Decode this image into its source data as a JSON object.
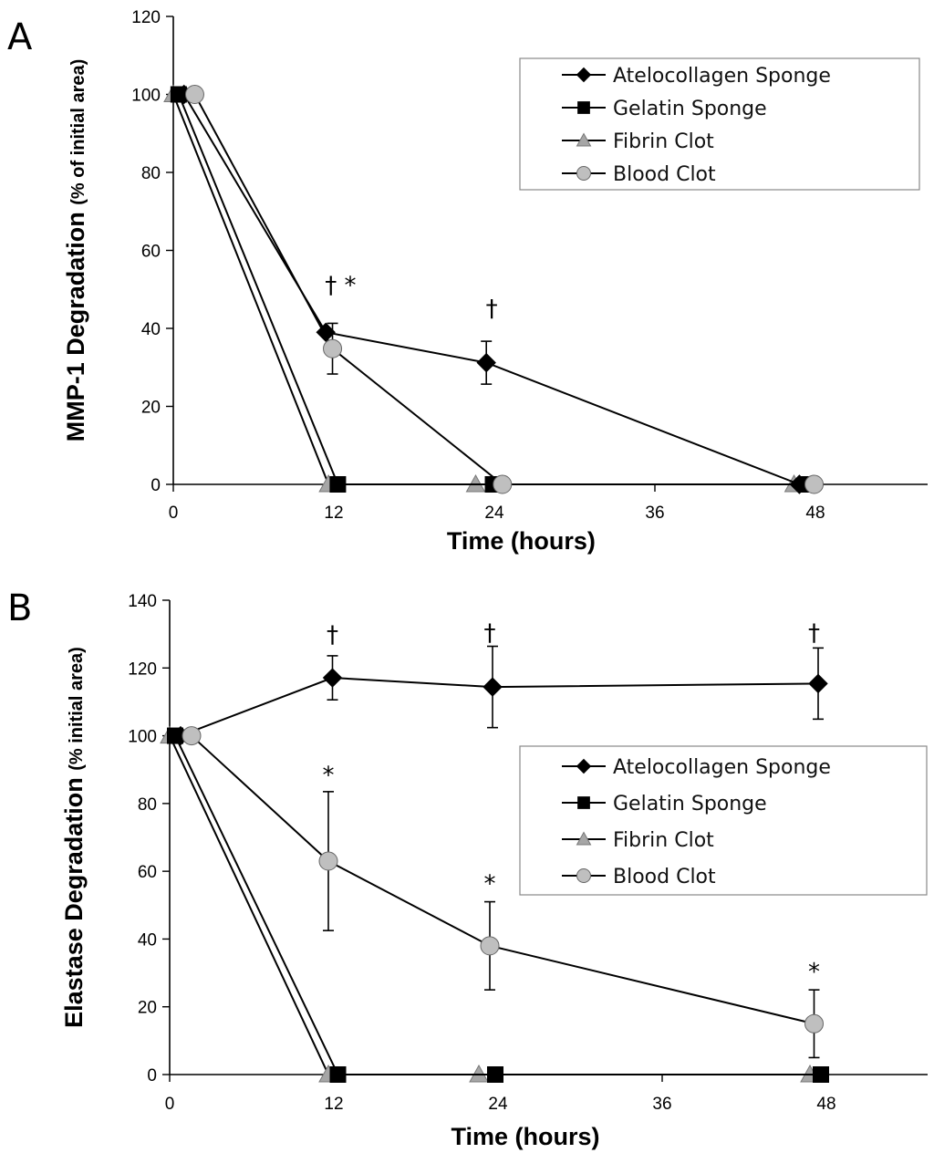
{
  "chart_data": [
    {
      "type": "line",
      "panel": "A",
      "xlabel": "Time (hours)",
      "ylabel_main": "MMP-1 Degradation",
      "ylabel_sub": "(% of initial area)",
      "xticks": [
        0,
        12,
        24,
        36,
        48
      ],
      "yticks": [
        0,
        20,
        40,
        60,
        80,
        100,
        120
      ],
      "xlim": [
        0,
        56
      ],
      "ylim": [
        0,
        120
      ],
      "legend_position": "top-right",
      "series": [
        {
          "name": "Atelocollagen Sponge",
          "marker": "diamond",
          "color": "#000000",
          "points": [
            {
              "x": 0.8,
              "y": 100
            },
            {
              "x": 11.4,
              "y": 39
            },
            {
              "x": 23.4,
              "y": 31.2,
              "err": 5.5
            },
            {
              "x": 46.8,
              "y": 0
            }
          ]
        },
        {
          "name": "Gelatin Sponge",
          "marker": "square",
          "color": "#000000",
          "points": [
            {
              "x": 0.4,
              "y": 100
            },
            {
              "x": 12.3,
              "y": 0
            },
            {
              "x": 23.9,
              "y": 0
            },
            {
              "x": 47.4,
              "y": 0
            }
          ]
        },
        {
          "name": "Fibrin Clot",
          "marker": "triangle",
          "color": "#a6a6a6",
          "points": [
            {
              "x": 0,
              "y": 100
            },
            {
              "x": 11.6,
              "y": 0
            },
            {
              "x": 22.6,
              "y": 0
            },
            {
              "x": 46.4,
              "y": 0
            }
          ]
        },
        {
          "name": "Blood Clot",
          "marker": "circle",
          "color": "#bfbfbf",
          "points": [
            {
              "x": 1.6,
              "y": 100
            },
            {
              "x": 11.9,
              "y": 34.8,
              "err": 6.5
            },
            {
              "x": 24.6,
              "y": 0
            },
            {
              "x": 47.9,
              "y": 0
            }
          ]
        }
      ],
      "annotations": [
        {
          "text": "† *",
          "x": 12.5,
          "y": 49
        },
        {
          "text": "†",
          "x": 23.8,
          "y": 43
        }
      ]
    },
    {
      "type": "line",
      "panel": "B",
      "xlabel": "Time (hours)",
      "ylabel_main": "Elastase Degradation",
      "ylabel_sub": "(% initial area)",
      "xticks": [
        0,
        12,
        24,
        36,
        48
      ],
      "yticks": [
        0,
        20,
        40,
        60,
        80,
        100,
        120,
        140
      ],
      "xlim": [
        0,
        56
      ],
      "ylim": [
        0,
        140
      ],
      "legend_position": "center-right",
      "series": [
        {
          "name": "Atelocollagen Sponge",
          "marker": "diamond",
          "color": "#000000",
          "points": [
            {
              "x": 0.8,
              "y": 100
            },
            {
              "x": 11.9,
              "y": 117.1,
              "err": 6.5
            },
            {
              "x": 23.6,
              "y": 114.4,
              "err": 12
            },
            {
              "x": 47.4,
              "y": 115.4,
              "err": 10.5
            }
          ]
        },
        {
          "name": "Gelatin Sponge",
          "marker": "square",
          "color": "#000000",
          "points": [
            {
              "x": 0.4,
              "y": 100
            },
            {
              "x": 12.3,
              "y": 0
            },
            {
              "x": 23.8,
              "y": 0
            },
            {
              "x": 47.6,
              "y": 0
            }
          ]
        },
        {
          "name": "Fibrin Clot",
          "marker": "triangle",
          "color": "#a6a6a6",
          "points": [
            {
              "x": 0,
              "y": 100
            },
            {
              "x": 11.6,
              "y": 0
            },
            {
              "x": 22.6,
              "y": 0
            },
            {
              "x": 46.8,
              "y": 0
            }
          ]
        },
        {
          "name": "Blood Clot",
          "marker": "circle",
          "color": "#bfbfbf",
          "points": [
            {
              "x": 1.6,
              "y": 100
            },
            {
              "x": 11.6,
              "y": 63,
              "err": 20.5
            },
            {
              "x": 23.4,
              "y": 38,
              "err": 13
            },
            {
              "x": 47.1,
              "y": 15,
              "err": 10
            }
          ]
        }
      ],
      "annotations": [
        {
          "text": "†",
          "x": 11.9,
          "y": 127.5
        },
        {
          "text": "†",
          "x": 23.4,
          "y": 128
        },
        {
          "text": "†",
          "x": 47.1,
          "y": 128
        },
        {
          "text": "*",
          "x": 11.6,
          "y": 86
        },
        {
          "text": "*",
          "x": 23.4,
          "y": 54
        },
        {
          "text": "*",
          "x": 47.1,
          "y": 28
        }
      ]
    }
  ]
}
